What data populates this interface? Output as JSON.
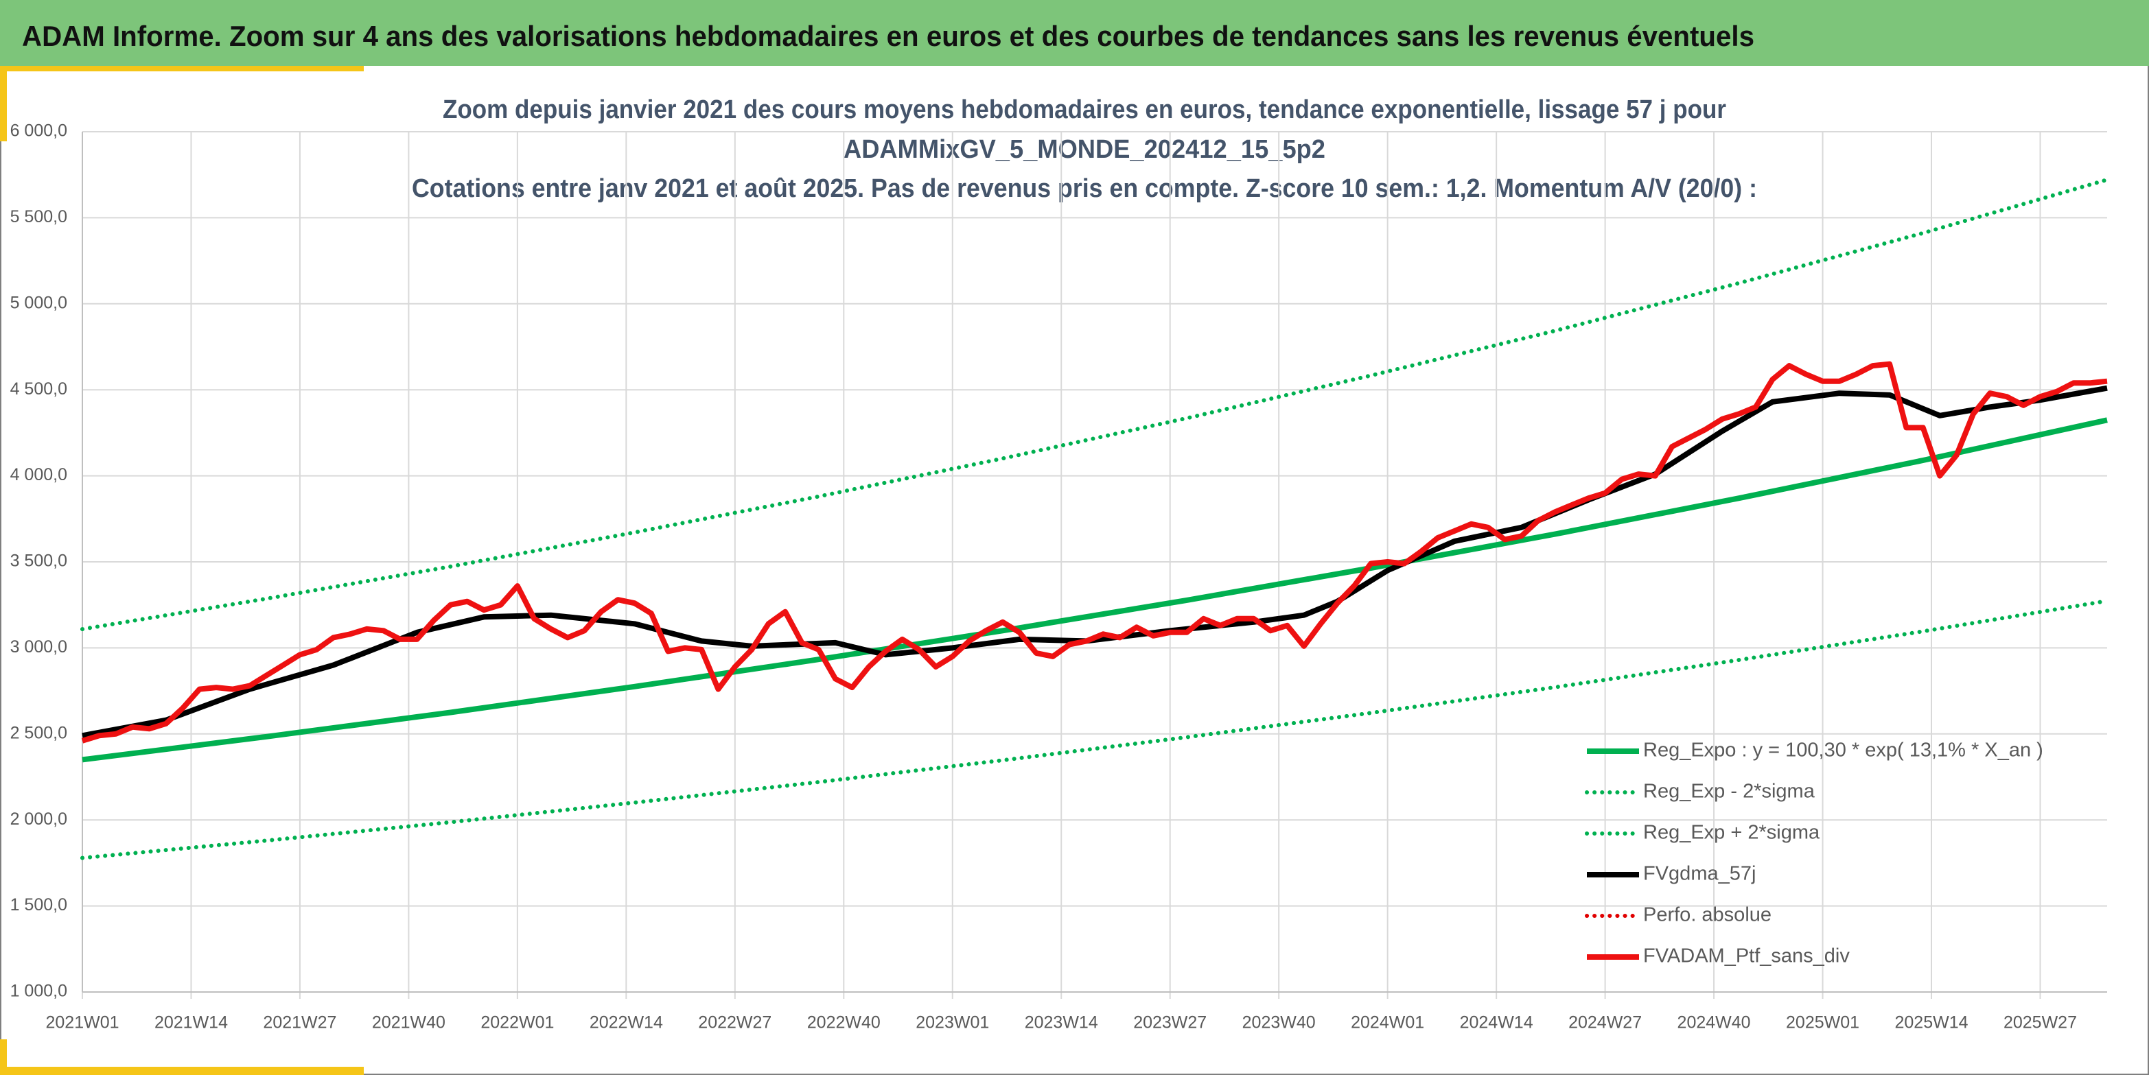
{
  "header": {
    "title": "ADAM Informe. Zoom sur 4 ans des valorisations hebdomadaires en euros et des courbes de tendances sans les revenus éventuels"
  },
  "chart_data": {
    "type": "line",
    "title": [
      "Zoom depuis janvier 2021 des cours moyens hebdomadaires en euros, tendance exponentielle, lissage 57 j pour",
      "ADAMMixGV_5_MONDE_202412_15_5p2",
      "Cotations entre janv 2021 et août 2025. Pas de revenus pris en compte. Z-score 10 sem.: 1,2. Momentum A/V (20/0) :"
    ],
    "xlim": [
      0,
      242
    ],
    "xticks": [
      {
        "value": 0,
        "label": "2021W01"
      },
      {
        "value": 13,
        "label": "2021W14"
      },
      {
        "value": 26,
        "label": "2021W27"
      },
      {
        "value": 39,
        "label": "2021W40"
      },
      {
        "value": 52,
        "label": "2022W01"
      },
      {
        "value": 65,
        "label": "2022W14"
      },
      {
        "value": 78,
        "label": "2022W27"
      },
      {
        "value": 91,
        "label": "2022W40"
      },
      {
        "value": 104,
        "label": "2023W01"
      },
      {
        "value": 117,
        "label": "2023W14"
      },
      {
        "value": 130,
        "label": "2023W27"
      },
      {
        "value": 143,
        "label": "2023W40"
      },
      {
        "value": 156,
        "label": "2024W01"
      },
      {
        "value": 169,
        "label": "2024W14"
      },
      {
        "value": 182,
        "label": "2024W27"
      },
      {
        "value": 195,
        "label": "2024W40"
      },
      {
        "value": 208,
        "label": "2025W01"
      },
      {
        "value": 221,
        "label": "2025W14"
      },
      {
        "value": 234,
        "label": "2025W27"
      }
    ],
    "ylim": [
      1000,
      6000
    ],
    "yticks": [
      {
        "value": 1000,
        "label": "1 000,0"
      },
      {
        "value": 1500,
        "label": "1 500,0"
      },
      {
        "value": 2000,
        "label": "2 000,0"
      },
      {
        "value": 2500,
        "label": "2 500,0"
      },
      {
        "value": 3000,
        "label": "3 000,0"
      },
      {
        "value": 3500,
        "label": "3 500,0"
      },
      {
        "value": 4000,
        "label": "4 000,0"
      },
      {
        "value": 4500,
        "label": "4 500,0"
      },
      {
        "value": 5000,
        "label": "5 000,0"
      },
      {
        "value": 5500,
        "label": "5 500,0"
      },
      {
        "value": 6000,
        "label": "6 000,0"
      }
    ],
    "grid": true,
    "legend": "bottom-right",
    "series": [
      {
        "name": "Reg_Expo : y = 100,30 * exp( 13,1% *  X_an )",
        "color": "#00b050",
        "style": "solid",
        "x": [
          0,
          22,
          44,
          66,
          88,
          110,
          132,
          154,
          176,
          198,
          220,
          242
        ],
        "values": [
          2350,
          2484,
          2625,
          2775,
          2933,
          3100,
          3277,
          3464,
          3661,
          3870,
          4090,
          4324
        ]
      },
      {
        "name": "Reg_Exp - 2*sigma",
        "color": "#00b050",
        "style": "dotted",
        "x": [
          0,
          22,
          44,
          66,
          88,
          110,
          132,
          154,
          176,
          198,
          220,
          242
        ],
        "values": [
          1779,
          1880,
          1987,
          2101,
          2220,
          2347,
          2481,
          2622,
          2771,
          2930,
          3096,
          3273
        ]
      },
      {
        "name": "Reg_Exp + 2*sigma",
        "color": "#00b050",
        "style": "dotted",
        "x": [
          0,
          22,
          44,
          66,
          88,
          110,
          132,
          154,
          176,
          198,
          220,
          242
        ],
        "values": [
          3109,
          3286,
          3473,
          3671,
          3880,
          4101,
          4335,
          4583,
          4843,
          5120,
          5411,
          5721
        ]
      },
      {
        "name": "FVgdma_57j",
        "color": "#000000",
        "style": "solid",
        "x": [
          0,
          10,
          20,
          30,
          40,
          48,
          56,
          66,
          74,
          80,
          90,
          96,
          104,
          112,
          120,
          130,
          140,
          146,
          150,
          156,
          164,
          172,
          180,
          188,
          196,
          202,
          210,
          216,
          222,
          228,
          234,
          242
        ],
        "values": [
          2490,
          2580,
          2760,
          2900,
          3090,
          3180,
          3190,
          3140,
          3040,
          3010,
          3030,
          2960,
          3000,
          3050,
          3040,
          3100,
          3150,
          3190,
          3270,
          3450,
          3620,
          3700,
          3860,
          4010,
          4260,
          4430,
          4480,
          4470,
          4350,
          4400,
          4440,
          4510
        ]
      },
      {
        "name": "Perfo. absolue",
        "color": "#e00000",
        "style": "dotted"
      },
      {
        "name": "FVADAM_Ptf_sans_div",
        "color": "#ee1111",
        "style": "solid",
        "x": [
          0,
          2,
          4,
          6,
          8,
          10,
          12,
          14,
          16,
          18,
          20,
          22,
          24,
          26,
          28,
          30,
          32,
          34,
          36,
          38,
          40,
          42,
          44,
          46,
          48,
          50,
          52,
          54,
          56,
          58,
          60,
          62,
          64,
          66,
          68,
          70,
          72,
          74,
          76,
          78,
          80,
          82,
          84,
          86,
          88,
          90,
          92,
          94,
          96,
          98,
          100,
          102,
          104,
          106,
          108,
          110,
          112,
          114,
          116,
          118,
          120,
          122,
          124,
          126,
          128,
          130,
          132,
          134,
          136,
          138,
          140,
          142,
          144,
          146,
          148,
          150,
          152,
          154,
          156,
          158,
          160,
          162,
          164,
          166,
          168,
          170,
          172,
          174,
          176,
          178,
          180,
          182,
          184,
          186,
          188,
          190,
          192,
          194,
          196,
          198,
          200,
          202,
          204,
          206,
          208,
          210,
          212,
          214,
          216,
          218,
          220,
          222,
          224,
          226,
          228,
          230,
          232,
          234,
          236,
          238,
          240,
          242
        ],
        "values": [
          2460,
          2490,
          2500,
          2540,
          2530,
          2560,
          2650,
          2760,
          2770,
          2760,
          2780,
          2840,
          2900,
          2960,
          2990,
          3060,
          3080,
          3110,
          3100,
          3050,
          3050,
          3160,
          3250,
          3270,
          3220,
          3250,
          3360,
          3170,
          3110,
          3060,
          3100,
          3210,
          3280,
          3260,
          3200,
          2980,
          3000,
          2990,
          2760,
          2890,
          2990,
          3140,
          3210,
          3030,
          2990,
          2820,
          2770,
          2890,
          2980,
          3050,
          2990,
          2890,
          2950,
          3040,
          3100,
          3150,
          3090,
          2970,
          2950,
          3020,
          3040,
          3080,
          3060,
          3120,
          3070,
          3090,
          3090,
          3170,
          3130,
          3170,
          3170,
          3100,
          3130,
          3010,
          3140,
          3260,
          3360,
          3490,
          3500,
          3490,
          3560,
          3640,
          3680,
          3720,
          3700,
          3630,
          3650,
          3740,
          3790,
          3830,
          3870,
          3900,
          3980,
          4010,
          4000,
          4170,
          4220,
          4270,
          4330,
          4360,
          4400,
          4560,
          4640,
          4590,
          4550,
          4550,
          4590,
          4640,
          4650,
          4280,
          4280,
          4000,
          4120,
          4360,
          4480,
          4460,
          4410,
          4460,
          4490,
          4540,
          4540,
          4550
        ]
      }
    ]
  }
}
